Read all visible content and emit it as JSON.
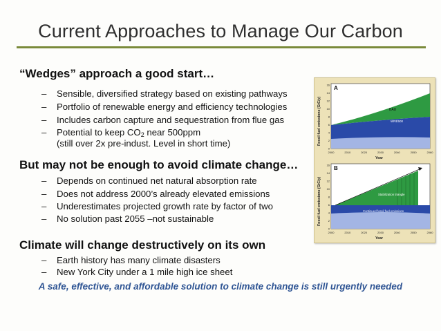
{
  "title": "Current Approaches to Manage Our Carbon",
  "sections": [
    {
      "heading": "“Wedges” approach a good start…",
      "bullets": [
        "Sensible, diversified strategy based on existing pathways",
        "Portfolio of renewable energy and efficiency technologies",
        "Includes carbon capture and sequestration from flue gas"
      ],
      "co2_bullet": {
        "before": "Potential to keep CO",
        "sub": "2",
        "after": " near 500ppm",
        "line2": "(still over 2x pre-indust. Level in short time)"
      }
    },
    {
      "heading": "But may not be enough to avoid climate change…",
      "bullets": [
        "Depends on continued net natural absorption rate",
        "Does not address 2000’s already elevated emissions",
        "Underestimates projected growth rate by factor of two",
        "No solution past 2055 –not sustainable"
      ]
    },
    {
      "heading": "Climate will change destructively on its own",
      "bullets": [
        "Earth history has many climate disasters",
        "New York City under a 1 mile high ice sheet"
      ]
    }
  ],
  "dash": "–",
  "footer": "A safe, effective, and affordable solution to climate change is still urgently needed",
  "figure": {
    "panelA": {
      "letter": "A",
      "ylabel": "Fossil fuel emissions (GtC/y)",
      "xlabel": "Year",
      "label_top": "BAU",
      "label_bottom": "WRE500"
    },
    "panelB": {
      "letter": "B",
      "ylabel": "Fossil fuel emissions (GtC/y)",
      "xlabel": "Year",
      "label_top": "Stabilization triangle",
      "label_bottom": "Continued fossil fuel emissions"
    },
    "yticks": [
      "16",
      "14",
      "12",
      "10",
      "8",
      "6",
      "4",
      "2",
      "0"
    ],
    "xticks": [
      "2000",
      "2010",
      "2020",
      "2030",
      "2040",
      "2050",
      "2060"
    ],
    "colors": {
      "green": "#2e9a42",
      "blue_dark": "#1f3f9a",
      "blue_light": "#b9c8ef",
      "frame_bg": "#ede2b8"
    }
  }
}
